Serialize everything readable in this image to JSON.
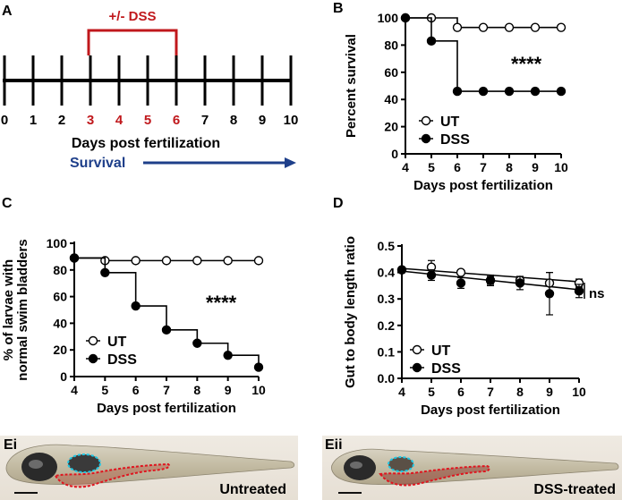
{
  "colors": {
    "treatment_red": "#c0181c",
    "survival_blue": "#1e3f8a",
    "dss_series": "#000000",
    "ut_series": "#ffffff",
    "gut_outline_cyan": "#1ec8e6",
    "gut_outline_red": "#e0141e"
  },
  "panel_a": {
    "letter": "A",
    "treatment_label": "+/- DSS",
    "day_labels": [
      "0",
      "1",
      "2",
      "3",
      "4",
      "5",
      "6",
      "7",
      "8",
      "9",
      "10"
    ],
    "treatment_days": [
      "3",
      "4",
      "5",
      "6"
    ],
    "xlabel": "Days post fertilization",
    "survival_label": "Survival"
  },
  "panel_b": {
    "letter": "B"
  },
  "panel_c": {
    "letter": "C"
  },
  "panel_d": {
    "letter": "D"
  },
  "panel_ei": {
    "letter": "Ei",
    "caption": "Untreated"
  },
  "panel_eii": {
    "letter": "Eii",
    "caption": "DSS-treated"
  },
  "chart_data": [
    {
      "panel": "B",
      "type": "line",
      "step": true,
      "xlabel": "Days post fertilization",
      "ylabel": "Percent survival",
      "xlim": [
        4,
        10
      ],
      "ylim": [
        0,
        100
      ],
      "xticks": [
        "4",
        "5",
        "6",
        "7",
        "8",
        "9",
        "10"
      ],
      "yticks": [
        "0",
        "20",
        "40",
        "60",
        "80",
        "100"
      ],
      "x": [
        4,
        5,
        6,
        7,
        8,
        9,
        10
      ],
      "series": [
        {
          "name": "UT",
          "marker": "open-circle",
          "values": [
            100,
            100,
            93,
            93,
            93,
            93,
            93
          ]
        },
        {
          "name": "DSS",
          "marker": "filled-circle",
          "values": [
            100,
            83,
            46,
            46,
            46,
            46,
            46
          ]
        }
      ],
      "annotations": [
        "****"
      ],
      "legend": "bottom-left"
    },
    {
      "panel": "C",
      "type": "line",
      "step": true,
      "xlabel": "Days post fertilization",
      "ylabel_lines": [
        "% of larvae with",
        "normal swim bladders"
      ],
      "xlim": [
        4,
        10
      ],
      "ylim": [
        0,
        100
      ],
      "xticks": [
        "4",
        "5",
        "6",
        "7",
        "8",
        "9",
        "10"
      ],
      "yticks": [
        "0",
        "20",
        "40",
        "60",
        "80",
        "100"
      ],
      "x": [
        4,
        5,
        6,
        7,
        8,
        9,
        10
      ],
      "series": [
        {
          "name": "UT",
          "marker": "open-circle",
          "values": [
            89,
            87,
            87,
            87,
            87,
            87,
            87
          ]
        },
        {
          "name": "DSS",
          "marker": "filled-circle",
          "values": [
            89,
            78,
            53,
            35,
            25,
            16,
            7
          ]
        }
      ],
      "annotations": [
        "****"
      ],
      "legend": "bottom-left"
    },
    {
      "panel": "D",
      "type": "scatter",
      "xlabel": "Days post fertilization",
      "ylabel": "Gut to body length ratio",
      "xlim": [
        4,
        10
      ],
      "ylim": [
        0.0,
        0.5
      ],
      "xticks": [
        "4",
        "5",
        "6",
        "7",
        "8",
        "9",
        "10"
      ],
      "yticks": [
        "0.0",
        "0.1",
        "0.2",
        "0.3",
        "0.4",
        "0.5"
      ],
      "x": [
        4,
        5,
        6,
        7,
        8,
        9,
        10
      ],
      "series": [
        {
          "name": "UT",
          "marker": "open-circle",
          "values": [
            0.41,
            0.42,
            0.4,
            0.37,
            0.37,
            0.36,
            0.36
          ],
          "error": [
            0.01,
            0.025,
            0.01,
            0.015,
            0.015,
            0.04,
            0.015
          ]
        },
        {
          "name": "DSS",
          "marker": "filled-circle",
          "values": [
            0.41,
            0.39,
            0.36,
            0.37,
            0.36,
            0.32,
            0.33
          ],
          "error": [
            0.01,
            0.02,
            0.02,
            0.02,
            0.025,
            0.08,
            0.025
          ]
        }
      ],
      "trendlines": [
        {
          "series": "UT",
          "from": 0.415,
          "to": 0.365
        },
        {
          "series": "DSS",
          "from": 0.405,
          "to": 0.335
        }
      ],
      "annotations": [
        "ns"
      ],
      "legend": "bottom-left"
    }
  ]
}
